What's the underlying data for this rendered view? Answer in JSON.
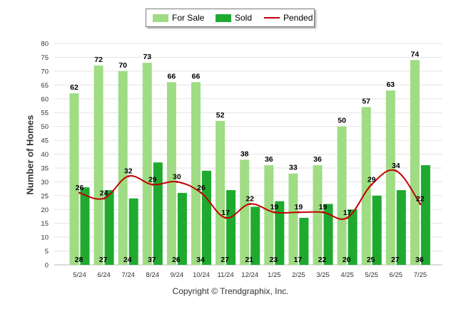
{
  "legend": {
    "for_sale": "For Sale",
    "sold": "Sold",
    "pended": "Pended"
  },
  "copyright": "Copyright © Trendgraphix, Inc.",
  "colors": {
    "for_sale": "#9fdc84",
    "sold": "#1faa2f",
    "pended": "#c00000",
    "grid": "#e3e3e3",
    "axis_text": "#333333"
  },
  "chart_data": {
    "type": "bar",
    "title": "",
    "xlabel": "",
    "ylabel": "Number of Homes",
    "ylim": [
      0,
      80
    ],
    "yticks": [
      0,
      5,
      10,
      15,
      20,
      25,
      30,
      35,
      40,
      45,
      50,
      55,
      60,
      65,
      70,
      75,
      80
    ],
    "grid": true,
    "legend_position": "top-center",
    "categories": [
      "5/24",
      "6/24",
      "7/24",
      "8/24",
      "9/24",
      "10/24",
      "11/24",
      "12/24",
      "1/25",
      "2/25",
      "3/25",
      "4/25",
      "5/25",
      "6/25",
      "7/25"
    ],
    "series": [
      {
        "name": "For Sale",
        "kind": "bar",
        "values": [
          62,
          72,
          70,
          73,
          66,
          66,
          52,
          38,
          36,
          33,
          36,
          50,
          57,
          63,
          74
        ]
      },
      {
        "name": "Sold",
        "kind": "bar",
        "values": [
          28,
          27,
          24,
          37,
          26,
          34,
          27,
          21,
          23,
          17,
          22,
          20,
          25,
          27,
          36
        ]
      },
      {
        "name": "Pended",
        "kind": "line",
        "values": [
          26,
          24,
          32,
          29,
          30,
          26,
          17,
          22,
          19,
          19,
          19,
          17,
          29,
          34,
          22
        ]
      }
    ]
  }
}
